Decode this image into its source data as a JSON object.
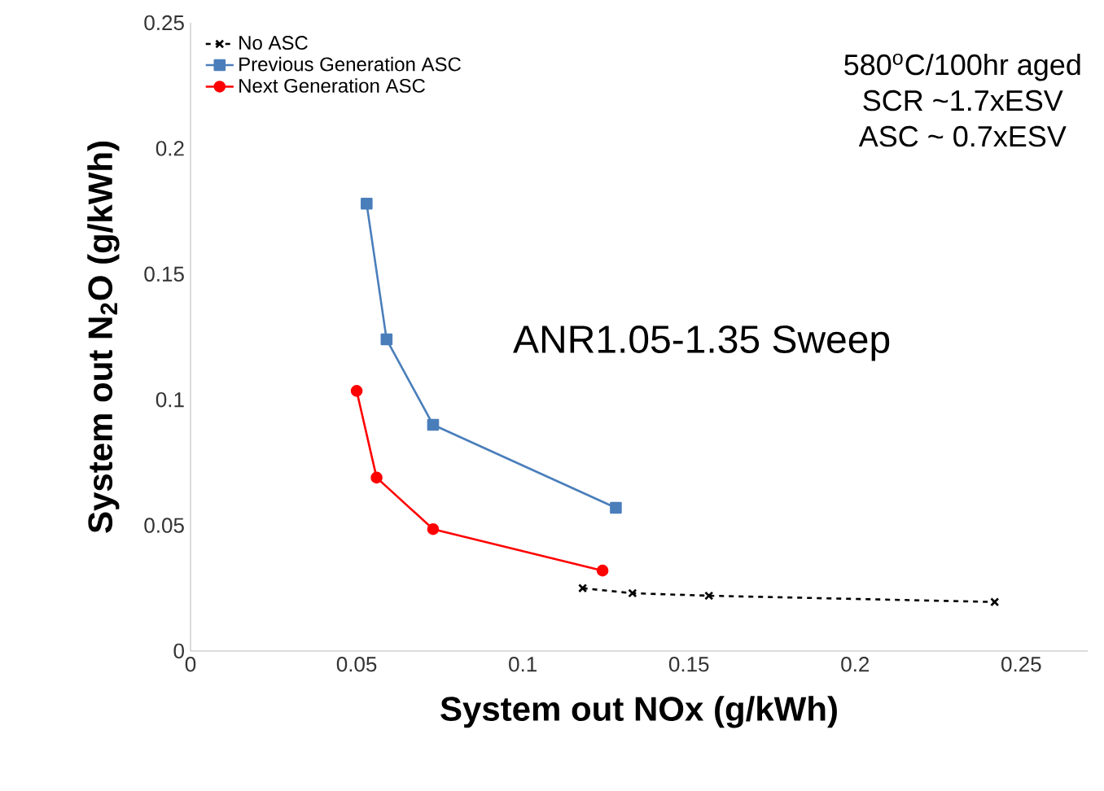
{
  "chart_data": {
    "type": "line",
    "xlabel": "System out NOx (g/kWh)",
    "ylabel": "System out N$_{2}$O (g/kWh)",
    "xlim": [
      0,
      0.27
    ],
    "ylim": [
      0,
      0.25
    ],
    "xticks": [
      {
        "value": 0,
        "label": "0"
      },
      {
        "value": 0.05,
        "label": "0.05"
      },
      {
        "value": 0.1,
        "label": "0.1"
      },
      {
        "value": 0.15,
        "label": "0.15"
      },
      {
        "value": 0.2,
        "label": "0.2"
      },
      {
        "value": 0.25,
        "label": "0.25"
      }
    ],
    "yticks": [
      {
        "value": 0,
        "label": "0"
      },
      {
        "value": 0.05,
        "label": "0.05"
      },
      {
        "value": 0.1,
        "label": "0.1"
      },
      {
        "value": 0.15,
        "label": "0.15"
      },
      {
        "value": 0.2,
        "label": "0.2"
      },
      {
        "value": 0.25,
        "label": "0.25"
      }
    ],
    "grid": false,
    "legend": "top left",
    "series": [
      {
        "name": "No ASC",
        "color": "#000000",
        "marker": "cross",
        "line_style": "dashed",
        "x": [
          0.118,
          0.133,
          0.156,
          0.242
        ],
        "values": [
          0.025,
          0.023,
          0.022,
          0.0195
        ]
      },
      {
        "name": "Previous Generation ASC",
        "color": "#4a7ebb",
        "marker": "square",
        "line_style": "solid",
        "x": [
          0.053,
          0.059,
          0.073,
          0.128
        ],
        "values": [
          0.178,
          0.124,
          0.09,
          0.057
        ]
      },
      {
        "name": "Next Generation ASC",
        "color": "#ff0000",
        "marker": "circle",
        "line_style": "solid",
        "x": [
          0.05,
          0.056,
          0.073,
          0.124
        ],
        "values": [
          0.1035,
          0.069,
          0.0485,
          0.032
        ]
      }
    ],
    "annotations": [
      "580$^{o}$C/100hr aged",
      "SCR ~1.7xESV",
      "ASC ~ 0.7xESV",
      "ANR1.05-1.35 Sweep"
    ]
  }
}
